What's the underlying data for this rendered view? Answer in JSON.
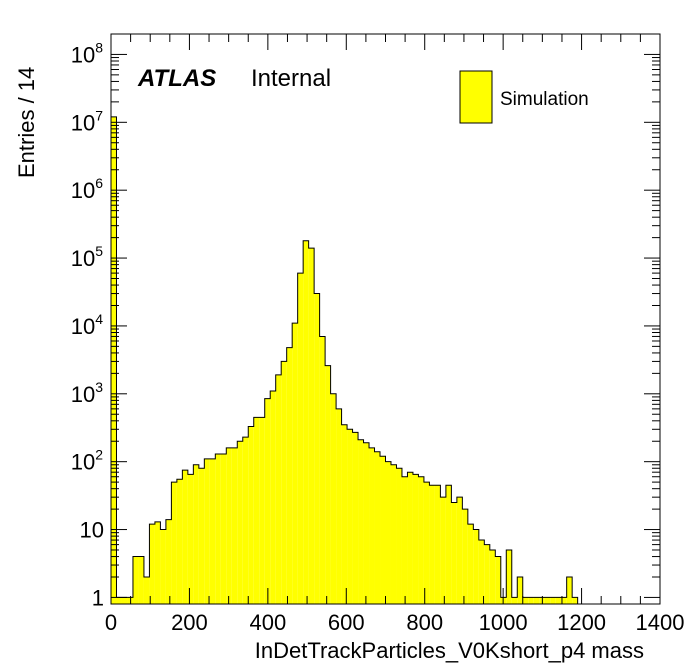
{
  "chart_data": {
    "type": "bar",
    "title": "",
    "xlabel": "InDetTrackParticles_V0Kshort_p4 mass",
    "ylabel": "Entries / 14",
    "log_y": true,
    "xlim": [
      0,
      1400
    ],
    "ylim": [
      0.8,
      200000000
    ],
    "bin_width": 14,
    "fill_color": "#ffff00",
    "edge_color": "#000000",
    "grid": false,
    "x_ticks": [
      "0",
      "200",
      "400",
      "600",
      "800",
      "1000",
      "1200",
      "1400"
    ],
    "y_ticks": [
      {
        "base": "1",
        "exp": ""
      },
      {
        "base": "10",
        "exp": ""
      },
      {
        "base": "10",
        "exp": "2"
      },
      {
        "base": "10",
        "exp": "3"
      },
      {
        "base": "10",
        "exp": "4"
      },
      {
        "base": "10",
        "exp": "5"
      },
      {
        "base": "10",
        "exp": "6"
      },
      {
        "base": "10",
        "exp": "7"
      },
      {
        "base": "10",
        "exp": "8"
      }
    ],
    "annotations": {
      "atlas": "ATLAS",
      "internal": "Internal"
    },
    "legend": {
      "label": "Simulation",
      "position": "top-right"
    },
    "series": [
      {
        "name": "Simulation",
        "bins": [
          {
            "x": 0,
            "y": 12000000
          },
          {
            "x": 14,
            "y": 1
          },
          {
            "x": 28,
            "y": 1
          },
          {
            "x": 42,
            "y": 1
          },
          {
            "x": 56,
            "y": 4
          },
          {
            "x": 70,
            "y": 4
          },
          {
            "x": 84,
            "y": 2
          },
          {
            "x": 98,
            "y": 12
          },
          {
            "x": 112,
            "y": 13
          },
          {
            "x": 126,
            "y": 10
          },
          {
            "x": 140,
            "y": 14
          },
          {
            "x": 154,
            "y": 50
          },
          {
            "x": 168,
            "y": 55
          },
          {
            "x": 182,
            "y": 75
          },
          {
            "x": 196,
            "y": 65
          },
          {
            "x": 210,
            "y": 90
          },
          {
            "x": 224,
            "y": 80
          },
          {
            "x": 238,
            "y": 110
          },
          {
            "x": 252,
            "y": 110
          },
          {
            "x": 266,
            "y": 130
          },
          {
            "x": 280,
            "y": 130
          },
          {
            "x": 294,
            "y": 160
          },
          {
            "x": 308,
            "y": 160
          },
          {
            "x": 322,
            "y": 200
          },
          {
            "x": 336,
            "y": 230
          },
          {
            "x": 350,
            "y": 330
          },
          {
            "x": 364,
            "y": 450
          },
          {
            "x": 378,
            "y": 450
          },
          {
            "x": 392,
            "y": 850
          },
          {
            "x": 406,
            "y": 1100
          },
          {
            "x": 420,
            "y": 1900
          },
          {
            "x": 434,
            "y": 3000
          },
          {
            "x": 448,
            "y": 4800
          },
          {
            "x": 462,
            "y": 11000
          },
          {
            "x": 476,
            "y": 60000
          },
          {
            "x": 490,
            "y": 180000
          },
          {
            "x": 504,
            "y": 140000
          },
          {
            "x": 518,
            "y": 30000
          },
          {
            "x": 532,
            "y": 7000
          },
          {
            "x": 546,
            "y": 2600
          },
          {
            "x": 560,
            "y": 1000
          },
          {
            "x": 574,
            "y": 600
          },
          {
            "x": 588,
            "y": 350
          },
          {
            "x": 602,
            "y": 300
          },
          {
            "x": 616,
            "y": 270
          },
          {
            "x": 630,
            "y": 210
          },
          {
            "x": 644,
            "y": 190
          },
          {
            "x": 658,
            "y": 160
          },
          {
            "x": 672,
            "y": 140
          },
          {
            "x": 686,
            "y": 120
          },
          {
            "x": 700,
            "y": 100
          },
          {
            "x": 714,
            "y": 90
          },
          {
            "x": 728,
            "y": 80
          },
          {
            "x": 742,
            "y": 60
          },
          {
            "x": 756,
            "y": 70
          },
          {
            "x": 770,
            "y": 65
          },
          {
            "x": 784,
            "y": 60
          },
          {
            "x": 798,
            "y": 50
          },
          {
            "x": 812,
            "y": 45
          },
          {
            "x": 826,
            "y": 45
          },
          {
            "x": 840,
            "y": 30
          },
          {
            "x": 854,
            "y": 45
          },
          {
            "x": 868,
            "y": 25
          },
          {
            "x": 882,
            "y": 30
          },
          {
            "x": 896,
            "y": 20
          },
          {
            "x": 910,
            "y": 12
          },
          {
            "x": 924,
            "y": 10
          },
          {
            "x": 938,
            "y": 7
          },
          {
            "x": 952,
            "y": 6
          },
          {
            "x": 966,
            "y": 5
          },
          {
            "x": 980,
            "y": 4
          },
          {
            "x": 994,
            "y": 1
          },
          {
            "x": 1008,
            "y": 5
          },
          {
            "x": 1022,
            "y": 1
          },
          {
            "x": 1036,
            "y": 2
          },
          {
            "x": 1050,
            "y": 1
          },
          {
            "x": 1064,
            "y": 1
          },
          {
            "x": 1078,
            "y": 1
          },
          {
            "x": 1092,
            "y": 1
          },
          {
            "x": 1106,
            "y": 1
          },
          {
            "x": 1120,
            "y": 1
          },
          {
            "x": 1134,
            "y": 1
          },
          {
            "x": 1148,
            "y": 1
          },
          {
            "x": 1162,
            "y": 2
          },
          {
            "x": 1176,
            "y": 1
          }
        ]
      }
    ]
  }
}
